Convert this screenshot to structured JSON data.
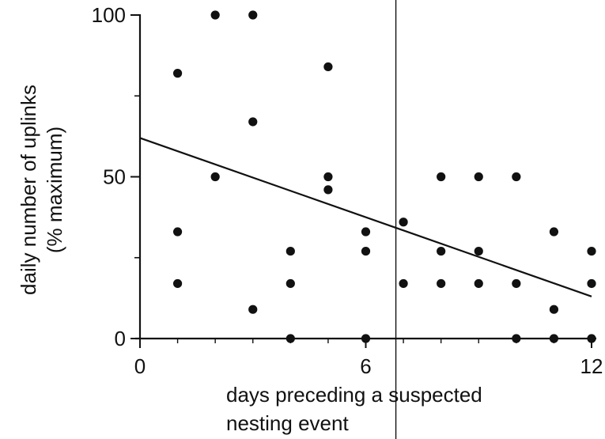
{
  "chart_data": {
    "type": "scatter",
    "title": "",
    "xlabel": [
      "days preceding a suspected",
      "nesting event"
    ],
    "ylabel": [
      "daily number of uplinks",
      "(% maximum)"
    ],
    "xlim": [
      0,
      12
    ],
    "ylim": [
      0,
      100
    ],
    "xticks": [
      0,
      6,
      12
    ],
    "yticks": [
      0,
      50,
      100
    ],
    "grid": false,
    "legend": "none",
    "points": [
      [
        1,
        82
      ],
      [
        1,
        33
      ],
      [
        1,
        17
      ],
      [
        2,
        100
      ],
      [
        2,
        50
      ],
      [
        3,
        100
      ],
      [
        3,
        67
      ],
      [
        3,
        9
      ],
      [
        4,
        27
      ],
      [
        4,
        17
      ],
      [
        4,
        0
      ],
      [
        5,
        84
      ],
      [
        5,
        50
      ],
      [
        5,
        46
      ],
      [
        6,
        33
      ],
      [
        6,
        27
      ],
      [
        6,
        0
      ],
      [
        7,
        36
      ],
      [
        7,
        17
      ],
      [
        8,
        50
      ],
      [
        8,
        27
      ],
      [
        8,
        17
      ],
      [
        9,
        50
      ],
      [
        9,
        27
      ],
      [
        9,
        17
      ],
      [
        10,
        50
      ],
      [
        10,
        17
      ],
      [
        10,
        0
      ],
      [
        11,
        33
      ],
      [
        11,
        9
      ],
      [
        11,
        0
      ],
      [
        12,
        27
      ],
      [
        12,
        17
      ],
      [
        12,
        0
      ]
    ],
    "trendline": {
      "x": [
        0,
        12
      ],
      "y": [
        62,
        13
      ]
    },
    "reference_line_x": 6.8,
    "colors": {
      "marker": "#111111",
      "line": "#111111"
    }
  }
}
